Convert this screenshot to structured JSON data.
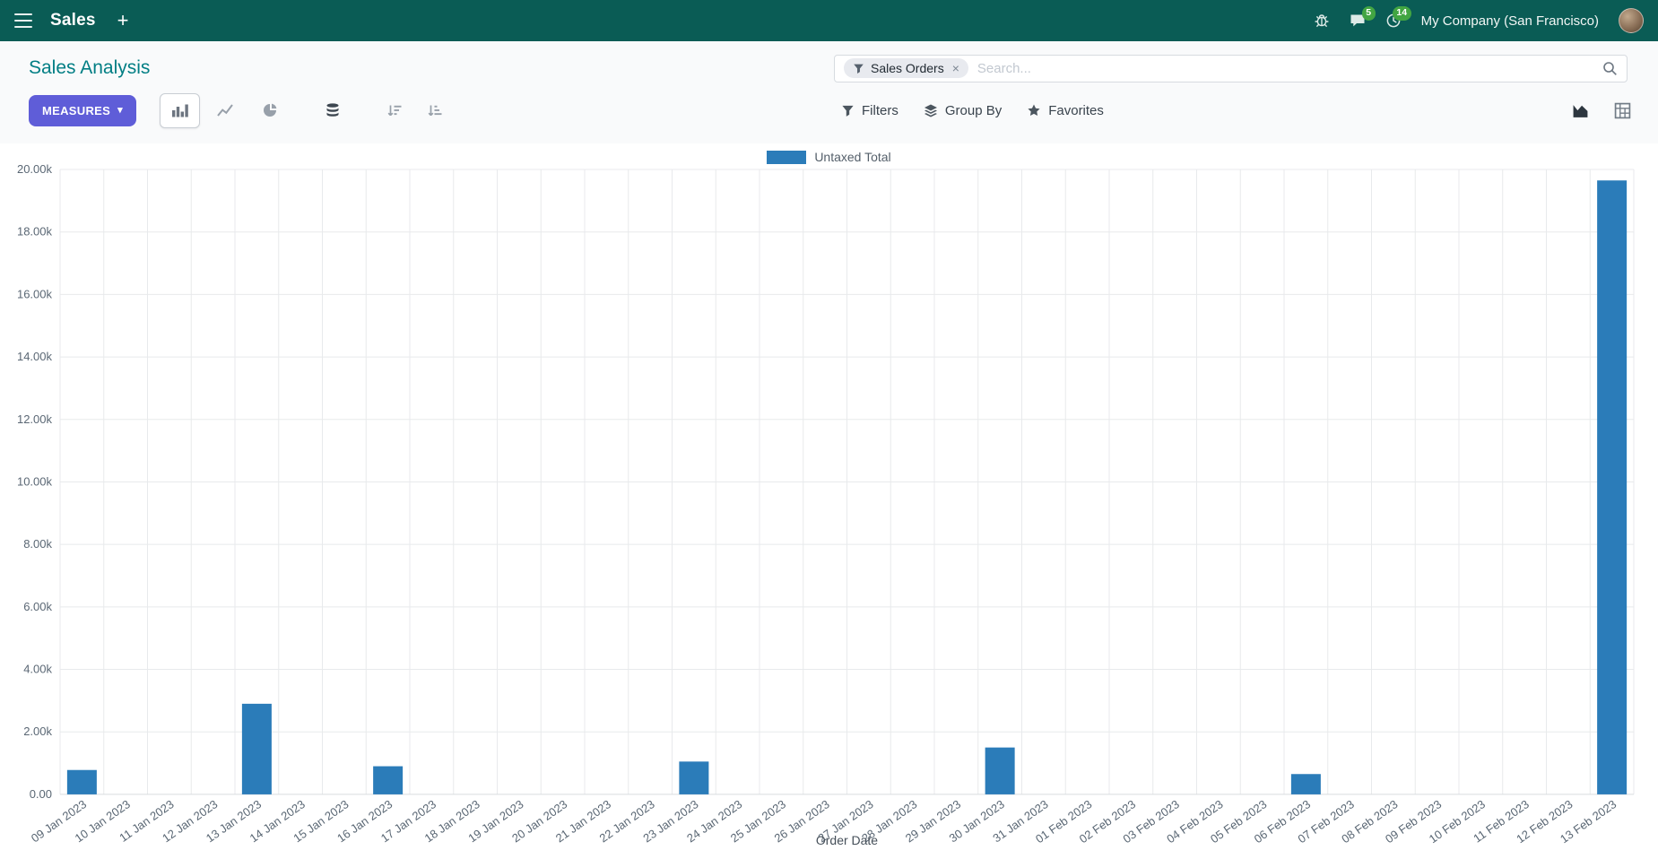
{
  "colors": {
    "navbar_bg": "#0a5c55",
    "accent_teal": "#017e84",
    "primary_button": "#5f5dd8",
    "badge_green": "#42a542",
    "bar_blue": "#2b7cb9"
  },
  "icons_glyphs": {
    "caret_down": "▾"
  },
  "navbar": {
    "app_name": "Sales",
    "new_tab": "+",
    "messages_badge": "5",
    "activities_badge": "14",
    "company": "My Company (San Francisco)"
  },
  "control_panel": {
    "breadcrumb": "Sales Analysis",
    "measures": "MEASURES",
    "filters": "Filters",
    "group_by": "Group By",
    "favorites": "Favorites",
    "search": {
      "facet_label": "Sales Orders",
      "facet_remove": "×",
      "placeholder": "Search..."
    }
  },
  "chart_data": {
    "type": "bar",
    "title": "",
    "xlabel": "Order Date",
    "ylabel": "",
    "ylim": [
      0,
      20000
    ],
    "ytick_step": 2000,
    "ytick_labels": [
      "0.00",
      "2.00k",
      "4.00k",
      "6.00k",
      "8.00k",
      "10.00k",
      "12.00k",
      "14.00k",
      "16.00k",
      "18.00k",
      "20.00k"
    ],
    "grid": true,
    "legend_position": "top-center",
    "categories": [
      "09 Jan 2023",
      "10 Jan 2023",
      "11 Jan 2023",
      "12 Jan 2023",
      "13 Jan 2023",
      "14 Jan 2023",
      "15 Jan 2023",
      "16 Jan 2023",
      "17 Jan 2023",
      "18 Jan 2023",
      "19 Jan 2023",
      "20 Jan 2023",
      "21 Jan 2023",
      "22 Jan 2023",
      "23 Jan 2023",
      "24 Jan 2023",
      "25 Jan 2023",
      "26 Jan 2023",
      "27 Jan 2023",
      "28 Jan 2023",
      "29 Jan 2023",
      "30 Jan 2023",
      "31 Jan 2023",
      "01 Feb 2023",
      "02 Feb 2023",
      "03 Feb 2023",
      "04 Feb 2023",
      "05 Feb 2023",
      "06 Feb 2023",
      "07 Feb 2023",
      "08 Feb 2023",
      "09 Feb 2023",
      "10 Feb 2023",
      "11 Feb 2023",
      "12 Feb 2023",
      "13 Feb 2023"
    ],
    "series": [
      {
        "name": "Untaxed Total",
        "color": "#2b7cb9",
        "values": [
          780,
          0,
          0,
          0,
          2900,
          0,
          0,
          900,
          0,
          0,
          0,
          0,
          0,
          0,
          1050,
          0,
          0,
          0,
          0,
          0,
          0,
          1500,
          0,
          0,
          0,
          0,
          0,
          0,
          650,
          0,
          0,
          0,
          0,
          0,
          0,
          19650
        ]
      }
    ]
  }
}
